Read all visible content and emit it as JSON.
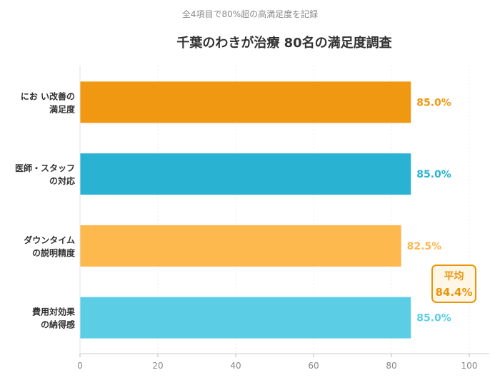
{
  "chart_data": {
    "type": "bar",
    "orientation": "horizontal",
    "subtitle": "全4項目で80%超の高満足度を記録",
    "title": "千葉のわきが治療 80名の満足度調査",
    "categories": [
      [
        "にお い改善の",
        "満足度"
      ],
      [
        "医師・スタッフ",
        "の対応"
      ],
      [
        "ダウンタイム",
        "の説明精度"
      ],
      [
        "費用対効果",
        "の納得感"
      ]
    ],
    "values": [
      85.0,
      85.0,
      82.5,
      85.0
    ],
    "value_labels": [
      "85.0%",
      "85.0%",
      "82.5%",
      "85.0%"
    ],
    "colors": [
      "#F09812",
      "#2AB2D3",
      "#FDB84E",
      "#5BCEE6"
    ],
    "xlim": [
      0,
      100
    ],
    "xticks": [
      0,
      20,
      40,
      60,
      80,
      100
    ],
    "grid": "vertical",
    "average": {
      "label": "平均",
      "value_label": "84.4%",
      "color": "#E8950E"
    }
  }
}
